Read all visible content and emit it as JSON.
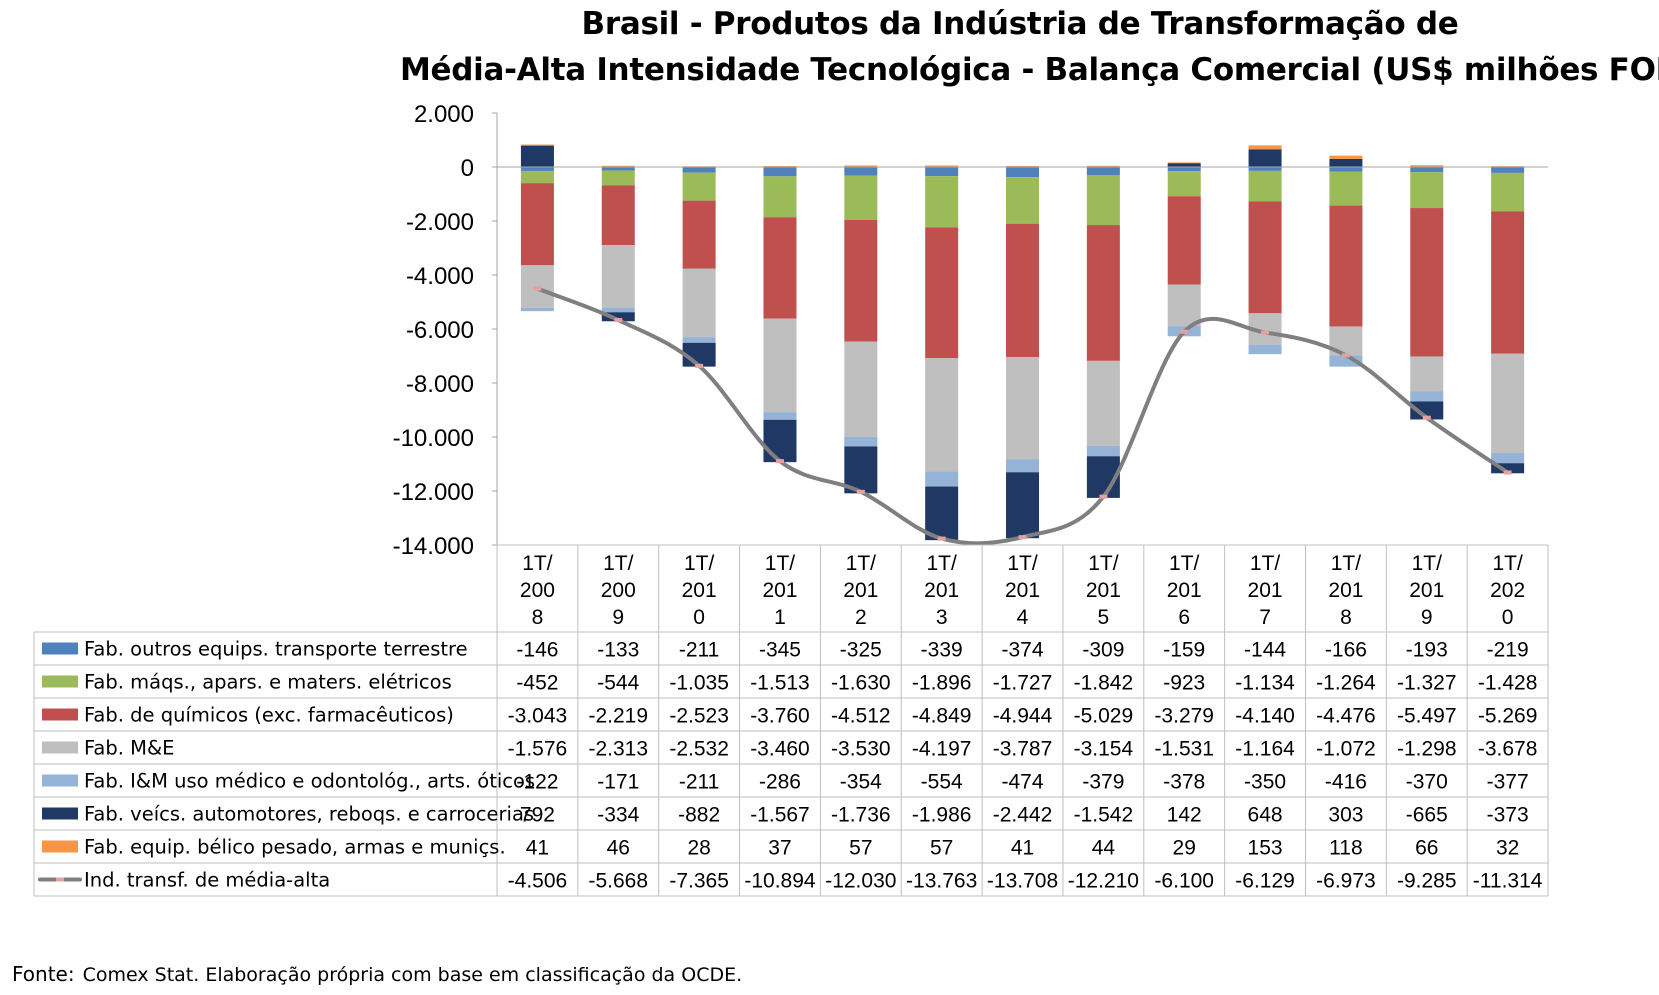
{
  "chart_data": {
    "type": "bar",
    "stacked": true,
    "title_line1": "Brasil - Produtos da Indústria de Transformação de",
    "title_line2": "Média-Alta Intensidade Tecnológica - Balança Comercial (US$ milhões FOB)",
    "ylim": [
      -14000,
      2000
    ],
    "yticks": [
      "2.000",
      "0",
      "-2.000",
      "-4.000",
      "-6.000",
      "-8.000",
      "-10.000",
      "-12.000",
      "-14.000"
    ],
    "ytick_values": [
      2000,
      0,
      -2000,
      -4000,
      -6000,
      -8000,
      -10000,
      -12000,
      -14000
    ],
    "categories": [
      [
        "1T/",
        "200",
        "8"
      ],
      [
        "1T/",
        "200",
        "9"
      ],
      [
        "1T/",
        "201",
        "0"
      ],
      [
        "1T/",
        "201",
        "1"
      ],
      [
        "1T/",
        "201",
        "2"
      ],
      [
        "1T/",
        "201",
        "3"
      ],
      [
        "1T/",
        "201",
        "4"
      ],
      [
        "1T/",
        "201",
        "5"
      ],
      [
        "1T/",
        "201",
        "6"
      ],
      [
        "1T/",
        "201",
        "7"
      ],
      [
        "1T/",
        "201",
        "8"
      ],
      [
        "1T/",
        "201",
        "9"
      ],
      [
        "1T/",
        "202",
        "0"
      ]
    ],
    "series": [
      {
        "name": "Fab. outros equips. transporte terrestre",
        "color": "#4f81bd",
        "kind": "bar",
        "values": [
          -146,
          -133,
          -211,
          -345,
          -325,
          -339,
          -374,
          -309,
          -159,
          -144,
          -166,
          -193,
          -219
        ],
        "labels": [
          "-146",
          "-133",
          "-211",
          "-345",
          "-325",
          "-339",
          "-374",
          "-309",
          "-159",
          "-144",
          "-166",
          "-193",
          "-219"
        ]
      },
      {
        "name": "Fab. máqs., apars. e maters. elétricos",
        "color": "#9bbb59",
        "kind": "bar",
        "values": [
          -452,
          -544,
          -1035,
          -1513,
          -1630,
          -1896,
          -1727,
          -1842,
          -923,
          -1134,
          -1264,
          -1327,
          -1428
        ],
        "labels": [
          "-452",
          "-544",
          "-1.035",
          "-1.513",
          "-1.630",
          "-1.896",
          "-1.727",
          "-1.842",
          "-923",
          "-1.134",
          "-1.264",
          "-1.327",
          "-1.428"
        ]
      },
      {
        "name": "Fab. de químicos (exc. farmacêuticos)",
        "color": "#c0504d",
        "kind": "bar",
        "values": [
          -3043,
          -2219,
          -2523,
          -3760,
          -4512,
          -4849,
          -4944,
          -5029,
          -3279,
          -4140,
          -4476,
          -5497,
          -5269
        ],
        "labels": [
          "-3.043",
          "-2.219",
          "-2.523",
          "-3.760",
          "-4.512",
          "-4.849",
          "-4.944",
          "-5.029",
          "-3.279",
          "-4.140",
          "-4.476",
          "-5.497",
          "-5.269"
        ]
      },
      {
        "name": "Fab. M&E",
        "color": "#bfbfbf",
        "kind": "bar",
        "values": [
          -1576,
          -2313,
          -2532,
          -3460,
          -3530,
          -4197,
          -3787,
          -3154,
          -1531,
          -1164,
          -1072,
          -1298,
          -3678
        ],
        "labels": [
          "-1.576",
          "-2.313",
          "-2.532",
          "-3.460",
          "-3.530",
          "-4.197",
          "-3.787",
          "-3.154",
          "-1.531",
          "-1.164",
          "-1.072",
          "-1.298",
          "-3.678"
        ]
      },
      {
        "name": "Fab. I&M uso médico e odontológ., arts. óticos",
        "color": "#95b3d7",
        "kind": "bar",
        "values": [
          -122,
          -171,
          -211,
          -286,
          -354,
          -554,
          -474,
          -379,
          -378,
          -350,
          -416,
          -370,
          -377
        ],
        "labels": [
          "-122",
          "-171",
          "-211",
          "-286",
          "-354",
          "-554",
          "-474",
          "-379",
          "-378",
          "-350",
          "-416",
          "-370",
          "-377"
        ]
      },
      {
        "name": "Fab. veícs. automotores, reboqs. e carrocerias",
        "color": "#1f3864",
        "kind": "bar",
        "values": [
          792,
          -334,
          -882,
          -1567,
          -1736,
          -1986,
          -2442,
          -1542,
          142,
          648,
          303,
          -665,
          -373
        ],
        "labels": [
          "792",
          "-334",
          "-882",
          "-1.567",
          "-1.736",
          "-1.986",
          "-2.442",
          "-1.542",
          "142",
          "648",
          "303",
          "-665",
          "-373"
        ]
      },
      {
        "name": "Fab. equip. bélico pesado, armas e muniçs.",
        "color": "#f79646",
        "kind": "bar",
        "values": [
          41,
          46,
          28,
          37,
          57,
          57,
          41,
          44,
          29,
          153,
          118,
          66,
          32
        ],
        "labels": [
          "41",
          "46",
          "28",
          "37",
          "57",
          "57",
          "41",
          "44",
          "29",
          "153",
          "118",
          "66",
          "32"
        ]
      },
      {
        "name": "Ind. transf. de média-alta",
        "color": "#7f7f7f",
        "kind": "line",
        "values": [
          -4506,
          -5668,
          -7365,
          -10894,
          -12030,
          -13763,
          -13708,
          -12210,
          -6100,
          -6129,
          -6973,
          -9285,
          -11314
        ],
        "labels": [
          "-4.506",
          "-5.668",
          "-7.365",
          "-10.894",
          "-12.030",
          "-13.763",
          "-13.708",
          "-12.210",
          "-6.100",
          "-6.129",
          "-6.973",
          "-9.285",
          "-11.314"
        ]
      }
    ],
    "grid": false,
    "legend": "data-table"
  },
  "footer": {
    "source_label": "Fonte:",
    "source_text": "Comex Stat. Elaboração própria com base em classificação da OCDE."
  }
}
